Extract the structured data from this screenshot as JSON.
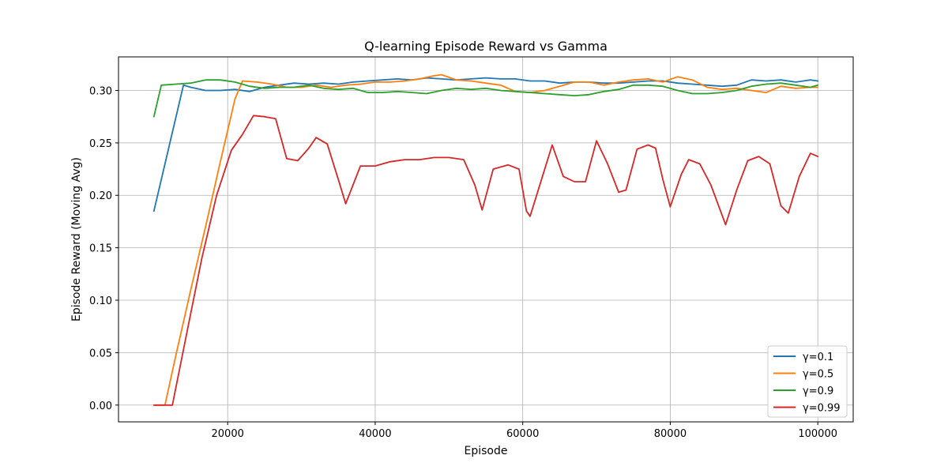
{
  "chart_data": {
    "type": "line",
    "title": "Q-learning Episode Reward vs Gamma",
    "xlabel": "Episode",
    "ylabel": "Episode Reward (Moving Avg)",
    "xlim": [
      5200,
      104800
    ],
    "ylim": [
      -0.016,
      0.332
    ],
    "xticks": [
      20000,
      40000,
      60000,
      80000,
      100000
    ],
    "yticks": [
      0.0,
      0.05,
      0.1,
      0.15,
      0.2,
      0.25,
      0.3
    ],
    "ytick_labels": [
      "0.00",
      "0.05",
      "0.10",
      "0.15",
      "0.20",
      "0.25",
      "0.30"
    ],
    "grid": true,
    "legend_position": "lower-right",
    "series": [
      {
        "name": "γ=0.1",
        "color": "#1f77b4",
        "x": [
          10000,
          12000,
          14000,
          15000,
          17000,
          19000,
          21000,
          23000,
          25000,
          27000,
          29000,
          31000,
          33000,
          35000,
          37000,
          39000,
          41000,
          43000,
          45000,
          47000,
          49000,
          51000,
          53000,
          55000,
          57000,
          59000,
          61000,
          63000,
          65000,
          67000,
          69000,
          71000,
          73000,
          75000,
          77000,
          79000,
          81000,
          83000,
          85000,
          87000,
          89000,
          91000,
          93000,
          95000,
          97000,
          99000,
          100000
        ],
        "y": [
          0.185,
          0.245,
          0.305,
          0.303,
          0.3,
          0.3,
          0.301,
          0.299,
          0.303,
          0.305,
          0.307,
          0.306,
          0.307,
          0.306,
          0.308,
          0.309,
          0.31,
          0.311,
          0.31,
          0.312,
          0.311,
          0.31,
          0.311,
          0.312,
          0.311,
          0.311,
          0.309,
          0.309,
          0.307,
          0.308,
          0.308,
          0.307,
          0.307,
          0.308,
          0.309,
          0.309,
          0.307,
          0.306,
          0.305,
          0.304,
          0.305,
          0.31,
          0.309,
          0.31,
          0.308,
          0.31,
          0.309
        ]
      },
      {
        "name": "γ=0.5",
        "color": "#ff7f0e",
        "x": [
          10000,
          11500,
          13000,
          15000,
          17000,
          19000,
          21000,
          22000,
          24000,
          26000,
          28000,
          30000,
          32000,
          34000,
          36000,
          38000,
          40000,
          42000,
          44000,
          46000,
          48000,
          49000,
          51000,
          53000,
          55000,
          57000,
          59000,
          61000,
          63000,
          65000,
          67000,
          69000,
          71000,
          73000,
          75000,
          77000,
          79000,
          81000,
          83000,
          85000,
          87000,
          89000,
          91000,
          93000,
          95000,
          97000,
          99000,
          100000
        ],
        "y": [
          0.0,
          0.0,
          0.048,
          0.11,
          0.17,
          0.232,
          0.292,
          0.309,
          0.308,
          0.306,
          0.303,
          0.303,
          0.305,
          0.303,
          0.305,
          0.306,
          0.308,
          0.308,
          0.309,
          0.311,
          0.314,
          0.315,
          0.31,
          0.309,
          0.307,
          0.305,
          0.299,
          0.298,
          0.3,
          0.304,
          0.308,
          0.308,
          0.305,
          0.308,
          0.31,
          0.311,
          0.308,
          0.313,
          0.31,
          0.303,
          0.301,
          0.302,
          0.3,
          0.298,
          0.304,
          0.302,
          0.303,
          0.303
        ]
      },
      {
        "name": "γ=0.9",
        "color": "#2ca02c",
        "x": [
          10000,
          11000,
          13000,
          15000,
          17000,
          19000,
          21000,
          23000,
          25000,
          27000,
          29000,
          31000,
          33000,
          35000,
          37000,
          39000,
          41000,
          43000,
          45000,
          47000,
          49000,
          51000,
          53000,
          55000,
          57000,
          59000,
          61000,
          63000,
          65000,
          67000,
          69000,
          71000,
          73000,
          75000,
          77000,
          79000,
          81000,
          83000,
          85000,
          87000,
          89000,
          91000,
          93000,
          95000,
          97000,
          99000,
          100000
        ],
        "y": [
          0.275,
          0.305,
          0.306,
          0.307,
          0.31,
          0.31,
          0.308,
          0.304,
          0.302,
          0.303,
          0.303,
          0.305,
          0.302,
          0.301,
          0.302,
          0.298,
          0.298,
          0.299,
          0.298,
          0.297,
          0.3,
          0.302,
          0.301,
          0.302,
          0.3,
          0.299,
          0.298,
          0.297,
          0.296,
          0.295,
          0.296,
          0.299,
          0.301,
          0.305,
          0.305,
          0.304,
          0.3,
          0.297,
          0.297,
          0.298,
          0.3,
          0.304,
          0.306,
          0.307,
          0.305,
          0.303,
          0.305
        ]
      },
      {
        "name": "γ=0.99",
        "color": "#d62728",
        "x": [
          10000,
          12500,
          14500,
          16500,
          18500,
          20500,
          22000,
          23500,
          25000,
          26500,
          28000,
          29500,
          31000,
          32000,
          33500,
          35000,
          36000,
          37000,
          38000,
          40000,
          42000,
          44000,
          46000,
          48000,
          50000,
          52000,
          53500,
          54500,
          56000,
          58000,
          59500,
          60500,
          61000,
          62500,
          64000,
          65500,
          67000,
          68500,
          70000,
          71500,
          73000,
          74000,
          75500,
          77000,
          78000,
          79000,
          80000,
          81500,
          82500,
          84000,
          85500,
          87500,
          89000,
          90500,
          92000,
          93500,
          95000,
          96000,
          97500,
          99000,
          100000
        ],
        "y": [
          0.0,
          0.0,
          0.07,
          0.14,
          0.2,
          0.243,
          0.258,
          0.276,
          0.275,
          0.273,
          0.235,
          0.233,
          0.245,
          0.255,
          0.249,
          0.215,
          0.192,
          0.21,
          0.228,
          0.228,
          0.232,
          0.234,
          0.234,
          0.236,
          0.236,
          0.234,
          0.21,
          0.186,
          0.225,
          0.229,
          0.225,
          0.185,
          0.18,
          0.214,
          0.248,
          0.218,
          0.213,
          0.213,
          0.252,
          0.23,
          0.203,
          0.205,
          0.244,
          0.248,
          0.245,
          0.215,
          0.189,
          0.22,
          0.234,
          0.23,
          0.21,
          0.172,
          0.205,
          0.233,
          0.237,
          0.23,
          0.19,
          0.183,
          0.218,
          0.24,
          0.237
        ]
      }
    ]
  }
}
